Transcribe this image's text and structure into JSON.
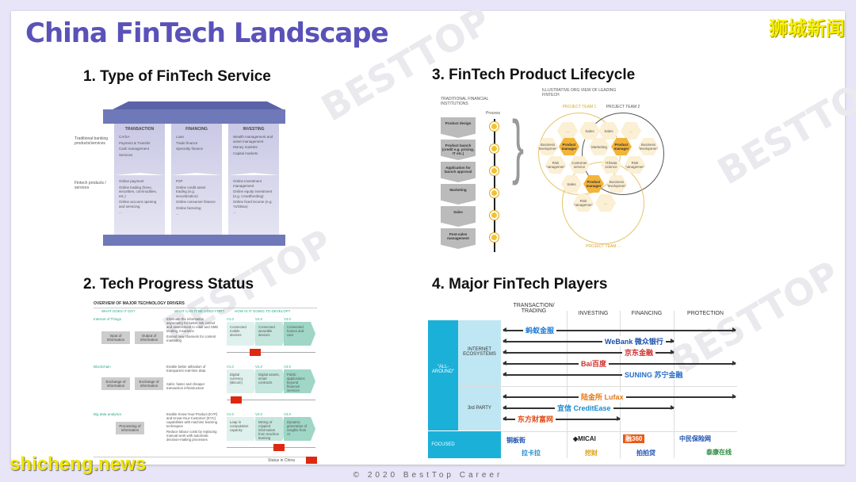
{
  "header": {
    "title": "China FinTech Landscape",
    "badge": "狮城新闻"
  },
  "footer": {
    "copyright": "© 2020 BestTop Career",
    "watermark": "shicheng.news",
    "brand_watermark": "BESTTOP"
  },
  "q1": {
    "title": "1. Type of FinTech Service",
    "row_labels": [
      "Traditional banking products/services",
      "Fintech products / services"
    ],
    "pillars": [
      {
        "name": "TRANSACTION",
        "top": [
          "CA/SA",
          "Payment & Transfer",
          "Cash management",
          "Services"
        ],
        "bottom": [
          "Online payment",
          "Online trading (forex, securities, commodities, etc.)",
          "Online account opening and servicing",
          "..."
        ]
      },
      {
        "name": "FINANCING",
        "top": [
          "Loan",
          "Trade finance",
          "Specialty finance"
        ],
        "bottom": [
          "P2P",
          "Online credit asset trading (e.g. securitization)",
          "Online consumer finance",
          "Online factoring",
          "..."
        ]
      },
      {
        "name": "INVESTING",
        "top": [
          "Wealth management and asset management",
          "Money markets",
          "Capital markets"
        ],
        "bottom": [
          "Online investment management",
          "Online equity investment (e.g. crowdfunding)",
          "Online fixed income (e.g. Yu'EBao)",
          "..."
        ]
      }
    ]
  },
  "q2": {
    "title": "2. Tech Progress Status",
    "overview": "OVERVIEW OF MAJOR TECHNOLOGY DRIVERS",
    "cols": [
      "WHAT DOES IT DO?",
      "WHAT CAN IT BE USED FOR?",
      "HOW IS IT GOING TO DEVELOP?"
    ],
    "flow": [
      "Input of information",
      "Output of information",
      "Exchange of information",
      "Exchange of information",
      "Processing of information"
    ],
    "rows": [
      {
        "name": "Internet of Things",
        "uses": [
          "Eliminate the information asymmetry for better risk control and assessment in retail and SME lending, insurance",
          "Extend new channels for content marketing"
        ],
        "stages": [
          "Connected mobile devices",
          "Connected wearable devices",
          "Connected homes and cars"
        ],
        "china_status": 0.3
      },
      {
        "name": "Blockchain",
        "uses": [
          "Enable better utilisation of transparent real-time data",
          "Safer, faster and cheaper transaction infrastructure"
        ],
        "stages": [
          "Digital currency (Bitcoin)",
          "Digital assets, smart contracts",
          "Public applications beyond financial services"
        ],
        "china_status": 0.05
      },
      {
        "name": "Big data analytics",
        "uses": [
          "Enable Know-Your-Product (KYP) and Know-Your-Customer (KYC) capabilities with machine learning techniques",
          "Reduce labour costs by replacing manual work with automatic decision-making processes"
        ],
        "stages": [
          "Leap in computation capacity",
          "Mining of crippled information from machine learning",
          "Dynamic generation of insights from AI"
        ],
        "china_status": 0.6
      }
    ],
    "versions": [
      "V1.0",
      "V2.0",
      "V3.0"
    ],
    "legend": "Status in China"
  },
  "q3": {
    "title": "3. FinTech Product Lifecycle",
    "trad_label": "TRADITIONAL FINANCIAL INSTITUTIONS",
    "process_label": "Process",
    "steps": [
      "Product design",
      "Product launch (credit e.g. pricing, IT etc.)",
      "Application for launch approval",
      "Marketing",
      "Sales",
      "Post-sales management"
    ],
    "org_label": "ILLUSTRATIVE ORG VIEW OF LEADING FINTECH",
    "teams": [
      "PROJECT TEAM 1",
      "PROJECT TEAM 2",
      "PROJECT TEAM ..."
    ],
    "roles": {
      "pm": "Product manager",
      "sales": "Sales",
      "bd": "Business development",
      "risk": "Risk management",
      "mkt": "Marketing",
      "cs": "Customer service",
      "it": "IT/Data science",
      "etc": "..."
    }
  },
  "q4": {
    "title": "4. Major FinTech Players",
    "cols": [
      "TRANSACTION/ TRADING",
      "INVESTING",
      "FINANCING",
      "PROTECTION"
    ],
    "groups": {
      "all": "\"ALL-AROUND\"",
      "internet": "INTERNET ECOSYSTEMS",
      "third": "3rd PARTY",
      "focused": "FOCUSED"
    },
    "players": [
      {
        "name": "蚂蚁金服",
        "color": "#1a7ad6",
        "span": 4
      },
      {
        "name": "WeBank 微众银行",
        "color": "#1a4fb0",
        "span": 3
      },
      {
        "name": "京东金融",
        "color": "#d0312d",
        "span": 3
      },
      {
        "name": "Bai百度",
        "color": "#d0312d",
        "span": 4
      },
      {
        "name": "SUNING 苏宁金融",
        "color": "#2a6fc9",
        "span": 3
      },
      {
        "name": "陆金所 Lufax",
        "color": "#e07a1a",
        "span": 4
      },
      {
        "name": "宜信 CreditEase",
        "color": "#1a8bd0",
        "span": 3
      },
      {
        "name": "东方财富网",
        "color": "#e0501a",
        "span": 2
      }
    ],
    "focused": [
      "铜板街",
      "拉卡拉",
      "◆MICAI",
      "挖财",
      "融360",
      "拍拍贷",
      "中民保险网",
      "泰康在线"
    ]
  }
}
